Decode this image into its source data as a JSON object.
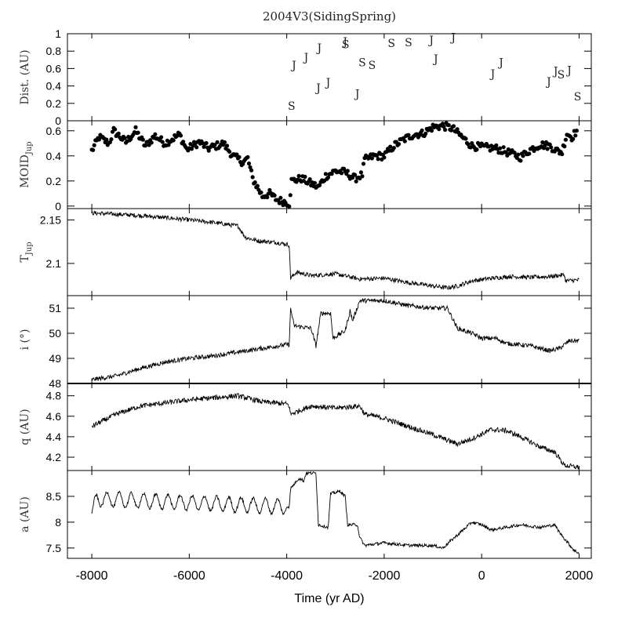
{
  "chart_data": {
    "type": "line",
    "title": "2004V3(SidingSpring)",
    "xlabel": "Time (yr AD)",
    "xlim": [
      -8500,
      2250
    ],
    "xticks": [
      -8000,
      -6000,
      -4000,
      -2000,
      0,
      2000
    ],
    "xtick_labels": [
      "-8000",
      "-6000",
      "-4000",
      "-2000",
      "0",
      "2000"
    ],
    "panels": [
      {
        "name": "dist",
        "ylabel": "Dist. (AU)",
        "ylim": [
          0,
          1
        ],
        "yticks": [
          0,
          0.2,
          0.4,
          0.6,
          0.8,
          1
        ],
        "ytick_labels": [
          "0",
          "0.2",
          "0.4",
          "0.6",
          "0.8",
          "1"
        ],
        "type": "markers",
        "encounters": [
          {
            "x": -3900,
            "y": 0.17,
            "label": "S"
          },
          {
            "x": -3850,
            "y": 0.64,
            "label": "J"
          },
          {
            "x": -3600,
            "y": 0.73,
            "label": "J"
          },
          {
            "x": -3350,
            "y": 0.38,
            "label": "J"
          },
          {
            "x": -3330,
            "y": 0.84,
            "label": "J"
          },
          {
            "x": -3150,
            "y": 0.44,
            "label": "J"
          },
          {
            "x": -2800,
            "y": 0.91,
            "label": "J"
          },
          {
            "x": -2790,
            "y": 0.88,
            "label": "S"
          },
          {
            "x": -2550,
            "y": 0.31,
            "label": "J"
          },
          {
            "x": -2450,
            "y": 0.67,
            "label": "S"
          },
          {
            "x": -2250,
            "y": 0.64,
            "label": "S"
          },
          {
            "x": -1850,
            "y": 0.89,
            "label": "S"
          },
          {
            "x": -1500,
            "y": 0.9,
            "label": "S"
          },
          {
            "x": -1030,
            "y": 0.93,
            "label": "J"
          },
          {
            "x": -940,
            "y": 0.71,
            "label": "J"
          },
          {
            "x": -580,
            "y": 0.96,
            "label": "J"
          },
          {
            "x": 230,
            "y": 0.54,
            "label": "J"
          },
          {
            "x": 400,
            "y": 0.67,
            "label": "J"
          },
          {
            "x": 1380,
            "y": 0.45,
            "label": "J"
          },
          {
            "x": 1520,
            "y": 0.57,
            "label": "J"
          },
          {
            "x": 1630,
            "y": 0.53,
            "label": "S"
          },
          {
            "x": 1800,
            "y": 0.58,
            "label": "J"
          },
          {
            "x": 1970,
            "y": 0.28,
            "label": "S"
          }
        ]
      },
      {
        "name": "moid",
        "ylabel": "MOID",
        "ylabel_sub": "Jup",
        "ylim": [
          -0.02,
          0.68
        ],
        "yticks": [
          0,
          0.2,
          0.4,
          0.6
        ],
        "ytick_labels": [
          "0",
          "0.2",
          "0.4",
          "0.6"
        ],
        "type": "scatter",
        "knots": [
          [
            -8000,
            0.44
          ],
          [
            -7850,
            0.55
          ],
          [
            -7650,
            0.5
          ],
          [
            -7550,
            0.6
          ],
          [
            -7300,
            0.51
          ],
          [
            -7100,
            0.6
          ],
          [
            -6900,
            0.48
          ],
          [
            -6700,
            0.56
          ],
          [
            -6500,
            0.5
          ],
          [
            -6200,
            0.57
          ],
          [
            -6050,
            0.45
          ],
          [
            -5800,
            0.51
          ],
          [
            -5600,
            0.46
          ],
          [
            -5300,
            0.5
          ],
          [
            -5100,
            0.4
          ],
          [
            -4900,
            0.35
          ],
          [
            -4800,
            0.38
          ],
          [
            -4700,
            0.22
          ],
          [
            -4600,
            0.15
          ],
          [
            -4500,
            0.08
          ],
          [
            -4350,
            0.1
          ],
          [
            -4200,
            0.05
          ],
          [
            -4000,
            0.03
          ],
          [
            -3950,
            0.02
          ],
          [
            -3900,
            0.2
          ],
          [
            -3700,
            0.22
          ],
          [
            -3500,
            0.18
          ],
          [
            -3350,
            0.15
          ],
          [
            -3200,
            0.24
          ],
          [
            -3000,
            0.28
          ],
          [
            -2800,
            0.27
          ],
          [
            -2600,
            0.22
          ],
          [
            -2450,
            0.25
          ],
          [
            -2400,
            0.37
          ],
          [
            -2200,
            0.4
          ],
          [
            -2000,
            0.4
          ],
          [
            -1800,
            0.48
          ],
          [
            -1600,
            0.53
          ],
          [
            -1400,
            0.57
          ],
          [
            -1200,
            0.58
          ],
          [
            -1000,
            0.63
          ],
          [
            -800,
            0.64
          ],
          [
            -600,
            0.62
          ],
          [
            -400,
            0.55
          ],
          [
            -200,
            0.48
          ],
          [
            0,
            0.47
          ],
          [
            300,
            0.46
          ],
          [
            600,
            0.42
          ],
          [
            800,
            0.39
          ],
          [
            1000,
            0.45
          ],
          [
            1200,
            0.49
          ],
          [
            1400,
            0.48
          ],
          [
            1550,
            0.44
          ],
          [
            1650,
            0.43
          ],
          [
            1750,
            0.58
          ],
          [
            1850,
            0.55
          ],
          [
            1950,
            0.6
          ]
        ],
        "dot_step": 25,
        "noise": 0.03
      },
      {
        "name": "tjup",
        "ylabel": "T",
        "ylabel_sub": "Jup",
        "ylim": [
          2.063,
          2.163
        ],
        "yticks": [
          2.1,
          2.15
        ],
        "ytick_labels": [
          "2.1",
          "2.15"
        ],
        "type": "line",
        "knots": [
          [
            -8000,
            2.158
          ],
          [
            -7000,
            2.155
          ],
          [
            -6000,
            2.15
          ],
          [
            -5500,
            2.147
          ],
          [
            -5000,
            2.143
          ],
          [
            -4850,
            2.13
          ],
          [
            -4600,
            2.126
          ],
          [
            -4200,
            2.124
          ],
          [
            -4000,
            2.122
          ],
          [
            -3950,
            2.121
          ],
          [
            -3920,
            2.083
          ],
          [
            -3800,
            2.09
          ],
          [
            -3500,
            2.086
          ],
          [
            -3000,
            2.088
          ],
          [
            -2500,
            2.082
          ],
          [
            -2000,
            2.083
          ],
          [
            -1500,
            2.078
          ],
          [
            -1000,
            2.074
          ],
          [
            -700,
            2.072
          ],
          [
            -500,
            2.074
          ],
          [
            -200,
            2.08
          ],
          [
            200,
            2.083
          ],
          [
            600,
            2.085
          ],
          [
            1000,
            2.084
          ],
          [
            1400,
            2.085
          ],
          [
            1700,
            2.087
          ],
          [
            1720,
            2.08
          ],
          [
            2000,
            2.081
          ]
        ],
        "noise": 0.0025
      },
      {
        "name": "incl",
        "ylabel": "i (°)",
        "ylim": [
          48,
          51.5
        ],
        "yticks": [
          48,
          49,
          50,
          51
        ],
        "ytick_labels": [
          "48",
          "49",
          "50",
          "51"
        ],
        "type": "line",
        "knots": [
          [
            -8000,
            48.15
          ],
          [
            -7500,
            48.3
          ],
          [
            -7000,
            48.6
          ],
          [
            -6500,
            48.85
          ],
          [
            -6000,
            49.0
          ],
          [
            -5500,
            49.1
          ],
          [
            -5000,
            49.25
          ],
          [
            -4500,
            49.4
          ],
          [
            -4000,
            49.55
          ],
          [
            -3950,
            49.55
          ],
          [
            -3920,
            51.0
          ],
          [
            -3850,
            50.3
          ],
          [
            -3500,
            50.2
          ],
          [
            -3400,
            49.5
          ],
          [
            -3300,
            50.8
          ],
          [
            -3100,
            50.8
          ],
          [
            -3050,
            49.8
          ],
          [
            -2800,
            50.1
          ],
          [
            -2700,
            50.9
          ],
          [
            -2650,
            50.5
          ],
          [
            -2500,
            51.3
          ],
          [
            -2000,
            51.3
          ],
          [
            -1500,
            51.1
          ],
          [
            -1000,
            51.0
          ],
          [
            -700,
            51.0
          ],
          [
            -500,
            50.2
          ],
          [
            -200,
            50.0
          ],
          [
            0,
            49.8
          ],
          [
            300,
            49.8
          ],
          [
            500,
            49.6
          ],
          [
            1000,
            49.5
          ],
          [
            1400,
            49.3
          ],
          [
            1600,
            49.4
          ],
          [
            1800,
            49.7
          ],
          [
            2000,
            49.7
          ]
        ],
        "noise": 0.09
      },
      {
        "name": "q",
        "ylabel": "q (AU)",
        "ylim": [
          4.07,
          4.92
        ],
        "yticks": [
          4.2,
          4.4,
          4.6,
          4.8
        ],
        "ytick_labels": [
          "4.2",
          "4.4",
          "4.6",
          "4.8"
        ],
        "type": "line",
        "knots": [
          [
            -8000,
            4.5
          ],
          [
            -7500,
            4.62
          ],
          [
            -7000,
            4.7
          ],
          [
            -6500,
            4.73
          ],
          [
            -6000,
            4.76
          ],
          [
            -5500,
            4.78
          ],
          [
            -5000,
            4.8
          ],
          [
            -4500,
            4.74
          ],
          [
            -4000,
            4.72
          ],
          [
            -3950,
            4.7
          ],
          [
            -3920,
            4.62
          ],
          [
            -3500,
            4.7
          ],
          [
            -3000,
            4.68
          ],
          [
            -2500,
            4.7
          ],
          [
            -2400,
            4.62
          ],
          [
            -2000,
            4.58
          ],
          [
            -1500,
            4.5
          ],
          [
            -1000,
            4.42
          ],
          [
            -500,
            4.33
          ],
          [
            -200,
            4.38
          ],
          [
            200,
            4.47
          ],
          [
            500,
            4.46
          ],
          [
            800,
            4.4
          ],
          [
            1200,
            4.3
          ],
          [
            1500,
            4.25
          ],
          [
            1700,
            4.12
          ],
          [
            2000,
            4.1
          ]
        ],
        "noise": 0.025
      },
      {
        "name": "a",
        "ylabel": "a (AU)",
        "ylim": [
          7.3,
          9.0
        ],
        "yticks": [
          7.5,
          8,
          8.5
        ],
        "ytick_labels": [
          "7.5",
          "8",
          "8.5"
        ],
        "type": "line",
        "knots": [
          [
            -8000,
            8.15
          ],
          [
            -7900,
            8.45
          ],
          [
            -4000,
            8.3
          ],
          [
            -3950,
            8.3
          ],
          [
            -3920,
            8.65
          ],
          [
            -3750,
            8.85
          ],
          [
            -3650,
            8.8
          ],
          [
            -3600,
            8.95
          ],
          [
            -3400,
            8.95
          ],
          [
            -3350,
            7.95
          ],
          [
            -3150,
            7.9
          ],
          [
            -3100,
            8.55
          ],
          [
            -2900,
            8.6
          ],
          [
            -2800,
            8.5
          ],
          [
            -2750,
            7.95
          ],
          [
            -2550,
            7.95
          ],
          [
            -2500,
            7.7
          ],
          [
            -2400,
            7.55
          ],
          [
            -2000,
            7.6
          ],
          [
            -1500,
            7.55
          ],
          [
            -1000,
            7.55
          ],
          [
            -800,
            7.5
          ],
          [
            -500,
            7.75
          ],
          [
            -200,
            8.0
          ],
          [
            0,
            7.95
          ],
          [
            200,
            7.85
          ],
          [
            500,
            7.9
          ],
          [
            800,
            7.95
          ],
          [
            1200,
            7.9
          ],
          [
            1500,
            7.95
          ],
          [
            1600,
            7.8
          ],
          [
            1900,
            7.45
          ],
          [
            2000,
            7.4
          ]
        ],
        "wiggle": {
          "x_end": -4000,
          "amplitude": 0.14,
          "period": 250
        },
        "noise": 0.03
      }
    ]
  }
}
